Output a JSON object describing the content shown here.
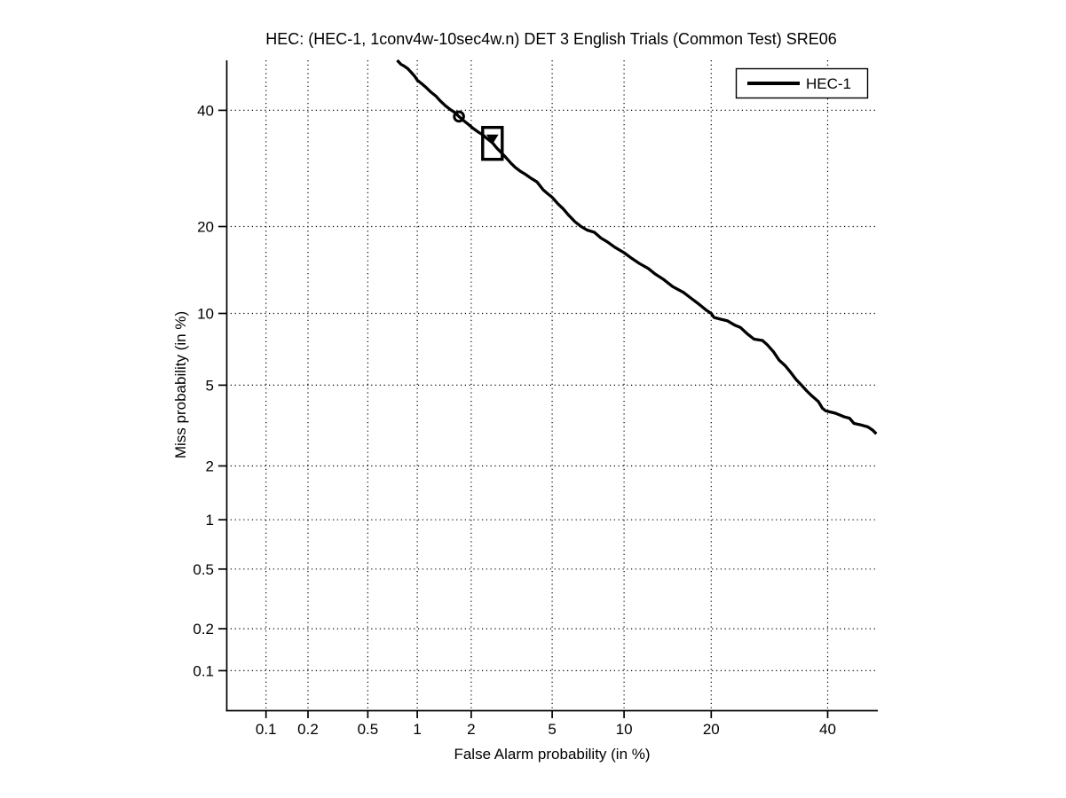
{
  "chart_data": {
    "type": "line",
    "title": "HEC: (HEC-1, 1conv4w-10sec4w.n) DET 3 English Trials (Common Test) SRE06",
    "xlabel": "False Alarm probability (in %)",
    "ylabel": "Miss probability (in %)",
    "x_scale": "probit",
    "y_scale": "probit",
    "xlim_pct": [
      0.05,
      50
    ],
    "ylim_pct": [
      0.05,
      50
    ],
    "x_ticks": [
      {
        "value": 0.1,
        "label": "0.1"
      },
      {
        "value": 0.2,
        "label": "0.2"
      },
      {
        "value": 0.5,
        "label": "0.5"
      },
      {
        "value": 1,
        "label": "1"
      },
      {
        "value": 2,
        "label": "2"
      },
      {
        "value": 5,
        "label": "5"
      },
      {
        "value": 10,
        "label": "10"
      },
      {
        "value": 20,
        "label": "20"
      },
      {
        "value": 40,
        "label": "40"
      }
    ],
    "y_ticks": [
      {
        "value": 0.1,
        "label": "0.1"
      },
      {
        "value": 0.2,
        "label": "0.2"
      },
      {
        "value": 0.5,
        "label": "0.5"
      },
      {
        "value": 1,
        "label": "1"
      },
      {
        "value": 2,
        "label": "2"
      },
      {
        "value": 5,
        "label": "5"
      },
      {
        "value": 10,
        "label": "10"
      },
      {
        "value": 20,
        "label": "20"
      },
      {
        "value": 40,
        "label": "40"
      }
    ],
    "grid": "dotted",
    "legend": {
      "position": "top-right",
      "entries": [
        {
          "label": "HEC-1",
          "color": "#000000"
        }
      ]
    },
    "series": [
      {
        "name": "HEC-1",
        "color": "#000000",
        "points_pfa_pmiss_pct": [
          [
            0.76,
            50.0
          ],
          [
            0.8,
            49.2
          ],
          [
            0.84,
            48.8
          ],
          [
            0.88,
            48.3
          ],
          [
            0.92,
            47.6
          ],
          [
            0.97,
            46.7
          ],
          [
            1.0,
            46.0
          ],
          [
            1.06,
            45.3
          ],
          [
            1.12,
            44.6
          ],
          [
            1.2,
            43.6
          ],
          [
            1.28,
            42.8
          ],
          [
            1.36,
            41.8
          ],
          [
            1.45,
            40.9
          ],
          [
            1.55,
            40.1
          ],
          [
            1.63,
            39.6
          ],
          [
            1.72,
            38.8
          ],
          [
            1.82,
            38.0
          ],
          [
            1.93,
            37.3
          ],
          [
            2.05,
            36.5
          ],
          [
            2.18,
            35.8
          ],
          [
            2.3,
            35.3
          ],
          [
            2.42,
            34.6
          ],
          [
            2.58,
            33.8
          ],
          [
            2.72,
            32.8
          ],
          [
            2.86,
            32.0
          ],
          [
            3.02,
            31.1
          ],
          [
            3.2,
            30.1
          ],
          [
            3.35,
            29.4
          ],
          [
            3.55,
            28.7
          ],
          [
            3.75,
            28.2
          ],
          [
            4.0,
            27.5
          ],
          [
            4.26,
            26.9
          ],
          [
            4.55,
            25.6
          ],
          [
            4.8,
            24.9
          ],
          [
            5.0,
            24.4
          ],
          [
            5.3,
            23.4
          ],
          [
            5.6,
            22.6
          ],
          [
            5.9,
            21.7
          ],
          [
            6.3,
            20.7
          ],
          [
            6.7,
            20.0
          ],
          [
            7.1,
            19.5
          ],
          [
            7.6,
            19.2
          ],
          [
            8.1,
            18.4
          ],
          [
            8.6,
            17.9
          ],
          [
            9.2,
            17.2
          ],
          [
            10.0,
            16.5
          ],
          [
            10.7,
            15.8
          ],
          [
            11.4,
            15.2
          ],
          [
            12.3,
            14.6
          ],
          [
            13.0,
            14.0
          ],
          [
            13.9,
            13.4
          ],
          [
            15.0,
            12.6
          ],
          [
            16.3,
            12.0
          ],
          [
            17.3,
            11.4
          ],
          [
            18.3,
            10.85
          ],
          [
            19.3,
            10.3
          ],
          [
            20.0,
            10.0
          ],
          [
            20.4,
            9.65
          ],
          [
            21.3,
            9.5
          ],
          [
            22.4,
            9.35
          ],
          [
            23.5,
            9.0
          ],
          [
            24.4,
            8.8
          ],
          [
            25.5,
            8.3
          ],
          [
            26.6,
            7.9
          ],
          [
            28.0,
            7.8
          ],
          [
            28.8,
            7.5
          ],
          [
            29.9,
            7.0
          ],
          [
            30.9,
            6.45
          ],
          [
            32.0,
            6.1
          ],
          [
            33.0,
            5.7
          ],
          [
            34.0,
            5.3
          ],
          [
            35.0,
            5.0
          ],
          [
            36.0,
            4.7
          ],
          [
            37.0,
            4.45
          ],
          [
            38.2,
            4.2
          ],
          [
            39.0,
            3.9
          ],
          [
            39.6,
            3.8
          ],
          [
            40.5,
            3.75
          ],
          [
            41.5,
            3.7
          ],
          [
            43.3,
            3.55
          ],
          [
            44.3,
            3.5
          ],
          [
            45.2,
            3.3
          ],
          [
            46.5,
            3.25
          ],
          [
            48.0,
            3.17
          ],
          [
            49.0,
            3.05
          ],
          [
            49.7,
            2.93
          ]
        ]
      }
    ],
    "markers": [
      {
        "shape": "circle",
        "pfa_pct": 1.72,
        "miss_pct": 38.8,
        "filled": false
      },
      {
        "shape": "square-outline",
        "pfa_pct": 2.58,
        "miss_pct": 33.7,
        "filled": false
      },
      {
        "shape": "triangle-down",
        "pfa_pct": 2.58,
        "miss_pct": 34.6,
        "filled": true
      }
    ]
  },
  "colors": {
    "foreground": "#000000",
    "background": "#ffffff",
    "grid": "#000000"
  }
}
